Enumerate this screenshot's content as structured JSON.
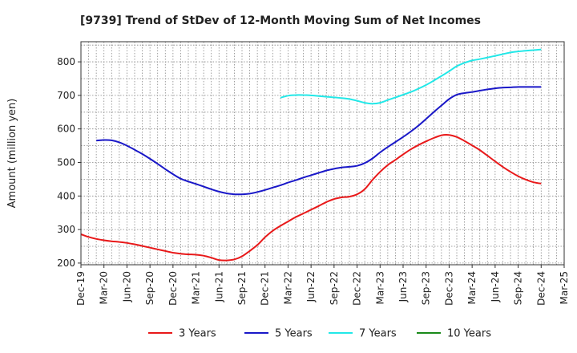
{
  "chart_data": {
    "type": "line",
    "title": "[9739]  Trend of StDev of 12-Month Moving Sum of Net Incomes",
    "xlabel": "",
    "ylabel": "Amount (million yen)",
    "ylim": [
      195,
      860
    ],
    "yticks": [
      200,
      300,
      400,
      500,
      600,
      700,
      800
    ],
    "x_tick_labels": [
      "Dec-19",
      "Mar-20",
      "Jun-20",
      "Sep-20",
      "Dec-20",
      "Mar-21",
      "Jun-21",
      "Sep-21",
      "Dec-21",
      "Mar-22",
      "Jun-22",
      "Sep-22",
      "Dec-22",
      "Mar-23",
      "Jun-23",
      "Sep-23",
      "Dec-23",
      "Mar-24",
      "Jun-24",
      "Sep-24",
      "Dec-24",
      "Mar-25"
    ],
    "grid": true,
    "legend_position": "bottom",
    "series": [
      {
        "name": "3 Years",
        "color": "#e8191a",
        "x": [
          0,
          0.33,
          0.67,
          1,
          1.33,
          1.67,
          2,
          2.33,
          2.67,
          3,
          3.33,
          3.67,
          4,
          4.33,
          4.67,
          5,
          5.33,
          5.67,
          6,
          6.33,
          6.67,
          7,
          7.33,
          7.67,
          8,
          8.33,
          8.67,
          9,
          9.33,
          9.67,
          10,
          10.33,
          10.67,
          11,
          11.33,
          11.67,
          12,
          12.33,
          12.67,
          13,
          13.33,
          13.67,
          14,
          14.33,
          14.67,
          15,
          15.33,
          15.67,
          16,
          16.33,
          16.67,
          17,
          17.33,
          17.67,
          18,
          18.33,
          18.67,
          19,
          19.33,
          19.67,
          20
        ],
        "values": [
          286,
          278,
          272,
          268,
          265,
          263,
          260,
          256,
          251,
          246,
          241,
          236,
          231,
          228,
          226,
          225,
          222,
          216,
          209,
          208,
          211,
          220,
          236,
          254,
          277,
          296,
          311,
          324,
          337,
          348,
          359,
          370,
          382,
          391,
          396,
          398,
          405,
          420,
          448,
          472,
          492,
          508,
          524,
          539,
          552,
          563,
          573,
          581,
          582,
          576,
          564,
          551,
          537,
          520,
          503,
          487,
          472,
          459,
          449,
          441,
          437
        ]
      },
      {
        "name": "5 Years",
        "color": "#1a18c8",
        "x": [
          0.67,
          1,
          1.33,
          1.67,
          2,
          2.33,
          2.67,
          3,
          3.33,
          3.67,
          4,
          4.33,
          4.67,
          5,
          5.33,
          5.67,
          6,
          6.33,
          6.67,
          7,
          7.33,
          7.67,
          8,
          8.33,
          8.67,
          9,
          9.33,
          9.67,
          10,
          10.33,
          10.67,
          11,
          11.33,
          11.67,
          12,
          12.33,
          12.67,
          13,
          13.33,
          13.67,
          14,
          14.33,
          14.67,
          15,
          15.33,
          15.67,
          16,
          16.33,
          16.67,
          17,
          17.33,
          17.67,
          18,
          18.33,
          18.67,
          19,
          19.33,
          19.67,
          20
        ],
        "values": [
          565,
          567,
          566,
          560,
          550,
          538,
          525,
          511,
          496,
          480,
          465,
          452,
          443,
          436,
          428,
          420,
          413,
          408,
          405,
          405,
          407,
          412,
          418,
          425,
          432,
          440,
          447,
          455,
          462,
          469,
          476,
          481,
          485,
          487,
          490,
          498,
          512,
          530,
          546,
          561,
          576,
          592,
          610,
          630,
          650,
          670,
          689,
          702,
          707,
          710,
          714,
          718,
          721,
          723,
          724,
          725,
          725,
          725,
          725
        ]
      },
      {
        "name": "7 Years",
        "color": "#22e8e8",
        "x": [
          8.67,
          9,
          9.33,
          9.67,
          10,
          10.33,
          10.67,
          11,
          11.33,
          11.67,
          12,
          12.33,
          12.67,
          13,
          13.33,
          13.67,
          14,
          14.33,
          14.67,
          15,
          15.33,
          15.67,
          16,
          16.33,
          16.67,
          17,
          17.33,
          17.67,
          18,
          18.33,
          18.67,
          19,
          19.33,
          19.67,
          20
        ],
        "values": [
          693,
          699,
          701,
          701,
          700,
          698,
          696,
          694,
          692,
          689,
          684,
          678,
          675,
          678,
          686,
          694,
          702,
          710,
          720,
          731,
          744,
          758,
          772,
          787,
          797,
          804,
          808,
          813,
          818,
          823,
          828,
          831,
          833,
          835,
          837
        ]
      },
      {
        "name": "10 Years",
        "color": "#1a8a1a",
        "x": [],
        "values": []
      }
    ]
  }
}
